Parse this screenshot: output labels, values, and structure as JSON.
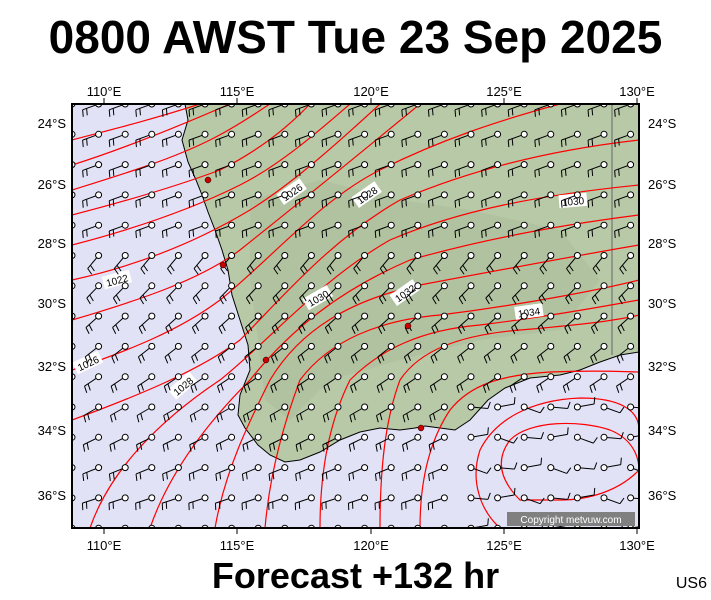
{
  "header": {
    "title": "0800 AWST Tue 23 Sep 2025"
  },
  "footer": {
    "forecast": "Forecast +132 hr",
    "region_code": "US6"
  },
  "copyright": "Copyright metvuw.com",
  "axes": {
    "top": [
      "110°E",
      "115°E",
      "120°E",
      "125°E",
      "130°E"
    ],
    "bottom": [
      "110°E",
      "115°E",
      "120°E",
      "125°E",
      "130°E"
    ],
    "left": [
      "24°S",
      "26°S",
      "28°S",
      "30°S",
      "32°S",
      "34°S",
      "36°S"
    ],
    "right": [
      "24°S",
      "26°S",
      "28°S",
      "30°S",
      "32°S",
      "34°S",
      "36°S"
    ]
  },
  "colors": {
    "ocean": "#e2e2f7",
    "land": "#b8c9a8",
    "isobar": "#ff0000",
    "frame": "#000000"
  },
  "isobar_labels": [
    "1026",
    "1028",
    "1030",
    "1022",
    "1030",
    "1032",
    "1034",
    "1026",
    "1028"
  ]
}
